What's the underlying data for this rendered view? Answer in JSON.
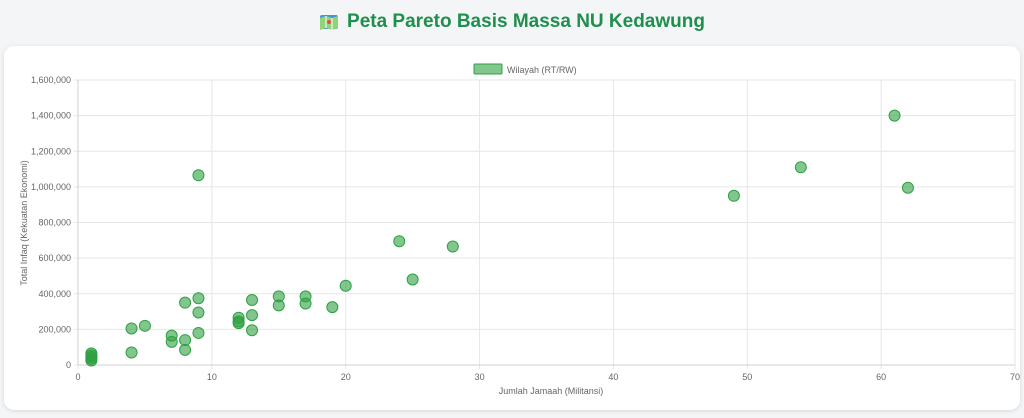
{
  "page": {
    "title": "Peta Pareto Basis Massa NU Kedawung",
    "title_icon": "map-icon"
  },
  "colors": {
    "title": "#1f8f4e",
    "point_fill": "rgba(46,160,67,0.6)",
    "point_stroke": "#2ea043",
    "grid": "#e6e6e6"
  },
  "chart_data": {
    "type": "scatter",
    "title": "",
    "xlabel": "Jumlah Jamaah (Militansi)",
    "ylabel": "Total Infaq (Kekuatan Ekonomi)",
    "xlim": [
      0,
      70
    ],
    "ylim": [
      0,
      1600000
    ],
    "x_ticks": [
      0,
      10,
      20,
      30,
      40,
      50,
      60,
      70
    ],
    "y_ticks": [
      0,
      200000,
      400000,
      600000,
      800000,
      1000000,
      1200000,
      1400000,
      1600000
    ],
    "y_tick_labels": [
      "0",
      "200,000",
      "400,000",
      "600,000",
      "800,000",
      "1,000,000",
      "1,200,000",
      "1,400,000",
      "1,600,000"
    ],
    "grid": true,
    "legend_position": "top",
    "series": [
      {
        "name": "Wilayah (RT/RW)",
        "points": [
          {
            "x": 1,
            "y": 25000
          },
          {
            "x": 1,
            "y": 35000
          },
          {
            "x": 1,
            "y": 45000
          },
          {
            "x": 1,
            "y": 55000
          },
          {
            "x": 1,
            "y": 65000
          },
          {
            "x": 4,
            "y": 70000
          },
          {
            "x": 4,
            "y": 205000
          },
          {
            "x": 5,
            "y": 220000
          },
          {
            "x": 7,
            "y": 130000
          },
          {
            "x": 7,
            "y": 165000
          },
          {
            "x": 8,
            "y": 85000
          },
          {
            "x": 8,
            "y": 140000
          },
          {
            "x": 8,
            "y": 350000
          },
          {
            "x": 9,
            "y": 180000
          },
          {
            "x": 9,
            "y": 295000
          },
          {
            "x": 9,
            "y": 375000
          },
          {
            "x": 9,
            "y": 1065000
          },
          {
            "x": 12,
            "y": 235000
          },
          {
            "x": 12,
            "y": 245000
          },
          {
            "x": 12,
            "y": 265000
          },
          {
            "x": 13,
            "y": 195000
          },
          {
            "x": 13,
            "y": 280000
          },
          {
            "x": 13,
            "y": 365000
          },
          {
            "x": 15,
            "y": 335000
          },
          {
            "x": 15,
            "y": 385000
          },
          {
            "x": 17,
            "y": 345000
          },
          {
            "x": 17,
            "y": 385000
          },
          {
            "x": 19,
            "y": 325000
          },
          {
            "x": 20,
            "y": 445000
          },
          {
            "x": 24,
            "y": 695000
          },
          {
            "x": 25,
            "y": 480000
          },
          {
            "x": 28,
            "y": 665000
          },
          {
            "x": 49,
            "y": 950000
          },
          {
            "x": 54,
            "y": 1110000
          },
          {
            "x": 61,
            "y": 1400000
          },
          {
            "x": 62,
            "y": 995000
          }
        ]
      }
    ]
  }
}
